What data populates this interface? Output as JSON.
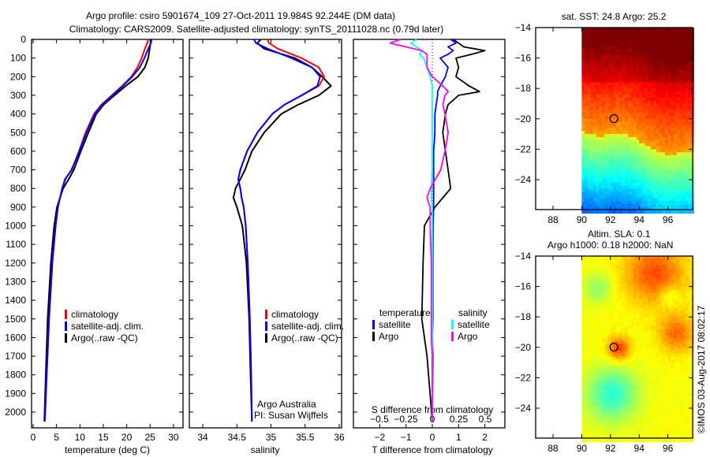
{
  "title_line1": "Argo profile: csiro 5901674_109 27-Oct-2011 19.984S 92.244E (DM data)",
  "title_line2": "Climatology: CARS2009. Satellite-adjusted climatology: synTS_20111028.nc (0.79d later)",
  "colors": {
    "climatology": "#ff0000",
    "satellite": "#0000ff",
    "argo": "#000000",
    "s_satellite": "#00ffff",
    "s_argo": "#ff00ff"
  },
  "chart_data": [
    {
      "type": "line",
      "name": "temperature",
      "xlabel": "temperature (deg C)",
      "ylabel": "",
      "xlim": [
        -1,
        31.5
      ],
      "ylim": [
        2085,
        0
      ],
      "xticks": [
        0,
        5,
        10,
        15,
        20,
        25,
        30
      ],
      "yticks": [
        0,
        100,
        200,
        300,
        400,
        500,
        600,
        700,
        800,
        900,
        1000,
        1100,
        1200,
        1300,
        1400,
        1500,
        1600,
        1700,
        1800,
        1900,
        2000
      ],
      "legend": [
        "climatology",
        "satellite-adj. clim.",
        "Argo(..raw -QC)"
      ],
      "depth": [
        0,
        20,
        50,
        100,
        150,
        200,
        250,
        300,
        350,
        400,
        500,
        600,
        700,
        750,
        800,
        900,
        1000,
        1200,
        1500,
        1800,
        2050
      ],
      "series": [
        {
          "name": "climatology",
          "values": [
            24.6,
            24.4,
            23.9,
            23.2,
            22.3,
            21.0,
            19.0,
            16.8,
            14.6,
            13.0,
            11.2,
            9.8,
            8.3,
            6.8,
            6.2,
            5.3,
            4.8,
            4.1,
            3.4,
            2.9,
            2.5
          ]
        },
        {
          "name": "satellite-adj. clim.",
          "values": [
            25.3,
            25.2,
            24.6,
            23.8,
            22.8,
            21.2,
            19.2,
            17.0,
            14.8,
            13.2,
            11.4,
            9.9,
            8.2,
            6.9,
            6.2,
            5.3,
            4.8,
            4.1,
            3.4,
            2.9,
            2.5
          ]
        },
        {
          "name": "Argo(..raw -QC)",
          "values": [
            25.2,
            25.1,
            24.9,
            24.6,
            23.9,
            22.4,
            19.8,
            17.4,
            15.1,
            13.5,
            11.8,
            10.2,
            8.7,
            7.6,
            6.4,
            5.1,
            4.5,
            3.8,
            3.1,
            2.7,
            2.4
          ]
        }
      ]
    },
    {
      "type": "line",
      "name": "salinity",
      "xlabel": "salinity",
      "xlim": [
        33.8,
        36.05
      ],
      "ylim": [
        2085,
        0
      ],
      "xticks": [
        34,
        34.5,
        35,
        35.5,
        36
      ],
      "legend": [
        "climatology",
        "satellite-adj. clim.",
        "Argo(..raw -QC)"
      ],
      "credit": [
        "Argo Australia",
        "PI: Susan Wijffels"
      ],
      "depth": [
        0,
        20,
        50,
        100,
        150,
        200,
        250,
        300,
        350,
        400,
        500,
        600,
        700,
        750,
        800,
        850,
        900,
        1000,
        1200,
        1500,
        1800,
        2050
      ],
      "series": [
        {
          "name": "climatology",
          "values": [
            34.95,
            34.97,
            35.1,
            35.45,
            35.7,
            35.78,
            35.7,
            35.45,
            35.2,
            35.02,
            34.8,
            34.65,
            34.55,
            34.52,
            34.55,
            34.57,
            34.6,
            34.63,
            34.66,
            34.69,
            34.71,
            34.72
          ]
        },
        {
          "name": "satellite-adj. clim.",
          "values": [
            34.75,
            34.78,
            34.95,
            35.3,
            35.6,
            35.72,
            35.68,
            35.45,
            35.2,
            35.02,
            34.8,
            34.65,
            34.55,
            34.52,
            34.55,
            34.57,
            34.6,
            34.63,
            34.66,
            34.69,
            34.71,
            34.72
          ]
        },
        {
          "name": "Argo(..raw -QC)",
          "values": [
            34.85,
            34.8,
            34.9,
            35.35,
            35.6,
            35.75,
            35.88,
            35.7,
            35.4,
            35.15,
            34.9,
            34.72,
            34.62,
            34.55,
            34.48,
            34.45,
            34.5,
            34.58,
            34.64,
            34.68,
            34.7,
            34.72
          ]
        }
      ]
    },
    {
      "type": "line",
      "name": "difference",
      "xlabel": "T difference from climatology",
      "xlabel_top": "S difference from climatology",
      "xlim": [
        -3,
        2.8
      ],
      "ylim": [
        2085,
        0
      ],
      "xticks": [
        -2,
        -1,
        0,
        1,
        2
      ],
      "xticks_s": [
        -0.5,
        -0.25,
        0,
        0.25,
        0.5
      ],
      "legend_t_title": "temperature",
      "legend_s_title": "salinity",
      "legend": [
        "satellite",
        "Argo",
        "satellite",
        "Argo"
      ],
      "depth": [
        0,
        20,
        40,
        60,
        80,
        100,
        150,
        200,
        250,
        280,
        300,
        350,
        400,
        500,
        600,
        700,
        800,
        850,
        900,
        1000,
        1200,
        1500,
        1600,
        1700,
        2050
      ],
      "series": [
        {
          "name": "T satellite",
          "var": "T",
          "values": [
            0.7,
            0.9,
            0.6,
            0.8,
            0.6,
            0.3,
            0.6,
            0.5,
            0.3,
            0.2,
            0.2,
            0.15,
            0.1,
            0.1,
            0.05,
            0.05,
            0.05,
            0.05,
            0.05,
            0.03,
            0.02,
            0.02,
            0.0,
            0.02,
            0.0
          ]
        },
        {
          "name": "T Argo",
          "var": "T",
          "values": [
            0.8,
            1.0,
            1.2,
            2.0,
            1.5,
            0.9,
            1.0,
            0.9,
            1.4,
            1.8,
            1.0,
            0.6,
            0.5,
            0.4,
            0.5,
            0.6,
            0.7,
            0.4,
            0.1,
            -0.3,
            -0.35,
            -0.4,
            -0.3,
            -0.2,
            0.0
          ]
        },
        {
          "name": "S satellite",
          "var": "S",
          "values": [
            -0.15,
            -0.2,
            -0.15,
            -0.1,
            -0.12,
            -0.08,
            -0.05,
            -0.02,
            0.0,
            0.0,
            0.0,
            0.0,
            0.0,
            0.0,
            0.0,
            0.0,
            -0.01,
            -0.01,
            0.0,
            0.0,
            0.0,
            0.0,
            0.0,
            0.0,
            0.0
          ]
        },
        {
          "name": "S Argo",
          "var": "S",
          "values": [
            -0.3,
            -0.4,
            -0.25,
            -0.1,
            -0.05,
            -0.05,
            -0.05,
            0.0,
            0.1,
            0.15,
            0.12,
            0.1,
            0.12,
            0.15,
            0.12,
            0.08,
            -0.02,
            -0.05,
            -0.02,
            -0.02,
            -0.01,
            -0.01,
            -0.01,
            0.0,
            0.0
          ]
        }
      ]
    },
    {
      "type": "heatmap",
      "name": "sst-map",
      "title": "sat. SST: 24.8  Argo: 25.2",
      "xticks": [
        88,
        90,
        92,
        94,
        96
      ],
      "yticks": [
        -14,
        -16,
        -18,
        -20,
        -22,
        -24
      ],
      "xlim": [
        86.8,
        97.7
      ],
      "ylim": [
        -26,
        -14
      ],
      "marker": {
        "lon": 92.244,
        "lat": -19.984
      }
    },
    {
      "type": "heatmap",
      "name": "sla-map",
      "title_line1": "Altim. SLA: 0.1",
      "title_line2": "Argo h1000: 0.18 h2000: NaN",
      "xticks": [
        88,
        90,
        92,
        94,
        96
      ],
      "yticks": [
        -14,
        -16,
        -18,
        -20,
        -22,
        -24
      ],
      "xlim": [
        86.8,
        97.7
      ],
      "ylim": [
        -26,
        -14
      ],
      "marker": {
        "lon": 92.244,
        "lat": -19.984
      }
    }
  ],
  "watermark": "©IMOS 03-Aug-2017 08:02:17"
}
